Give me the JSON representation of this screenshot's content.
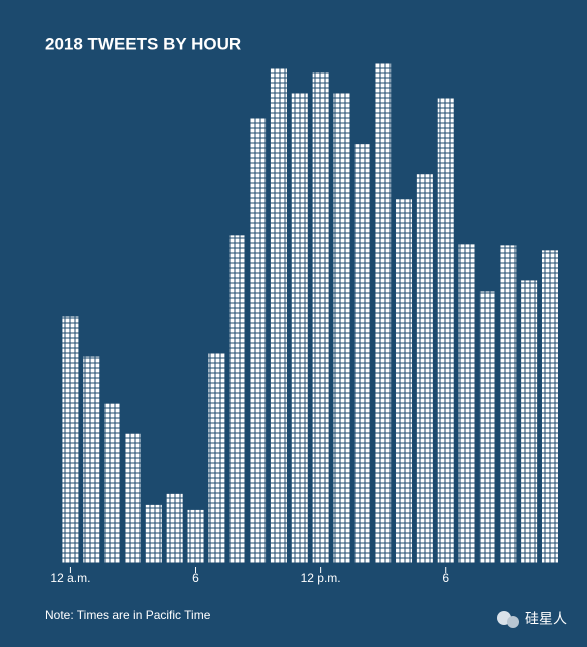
{
  "chart_data": {
    "type": "bar",
    "title": "2018 TWEETS BY HOUR",
    "categories": [
      "12 a.m.",
      null,
      null,
      null,
      null,
      null,
      "6",
      null,
      null,
      null,
      null,
      null,
      "12 p.m.",
      null,
      null,
      null,
      null,
      null,
      "6",
      null,
      null,
      null,
      null,
      null
    ],
    "values": [
      246,
      206,
      159,
      129,
      58,
      69,
      53,
      210,
      327,
      444,
      494,
      469,
      490,
      469,
      418,
      499,
      363,
      388,
      464,
      318,
      271,
      317,
      282,
      312
    ],
    "color": "#ffffff",
    "note": "Note: Times are in Pacific Time",
    "watermark": "硅星人"
  }
}
